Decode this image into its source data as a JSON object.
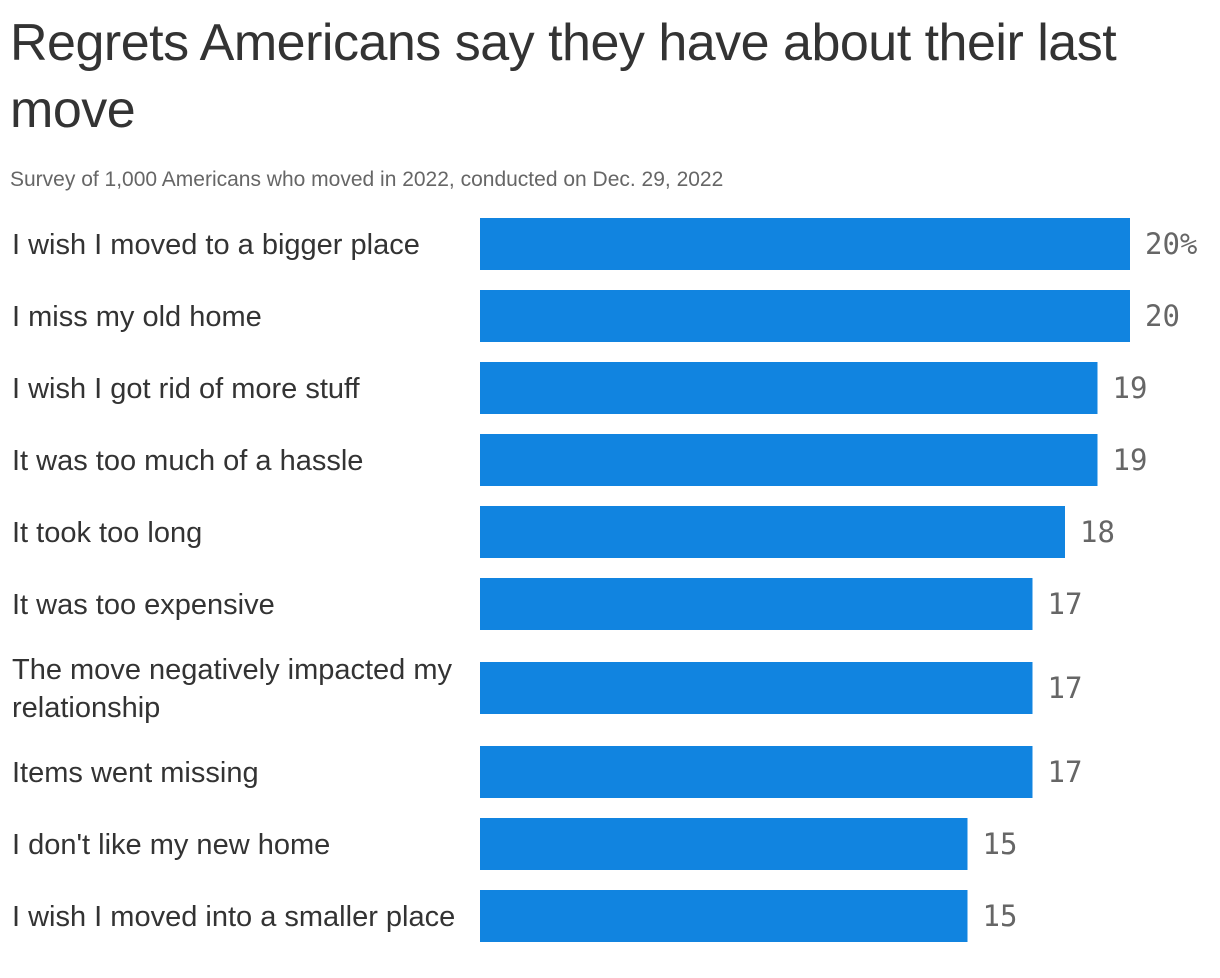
{
  "chart_data": {
    "type": "bar",
    "orientation": "horizontal",
    "title": "Regrets Americans say they have about their last move",
    "subtitle": "Survey of 1,000 Americans who moved in 2022, conducted on Dec. 29, 2022",
    "categories": [
      "I wish I moved to a bigger place",
      "I miss my old home",
      "I wish I got rid of more stuff",
      "It was too much of a hassle",
      "It took too long",
      "It was too expensive",
      "The move negatively impacted my relationship",
      "Items went missing",
      "I don't like my new home",
      "I wish I moved into a smaller place"
    ],
    "values": [
      20,
      20,
      19,
      19,
      18,
      17,
      17,
      17,
      15,
      15
    ],
    "value_labels": [
      "20%",
      "20",
      "19",
      "19",
      "18",
      "17",
      "17",
      "17",
      "15",
      "15"
    ],
    "bar_color": "#1184e0",
    "grid": false,
    "legend": "none"
  }
}
